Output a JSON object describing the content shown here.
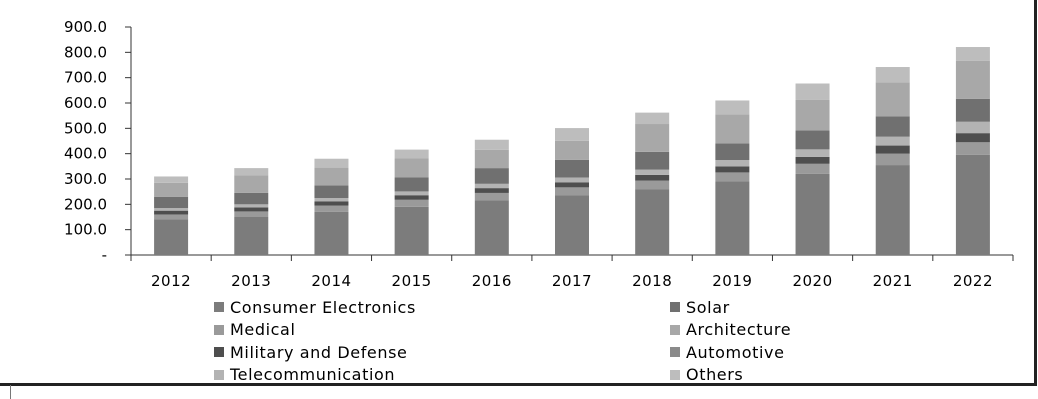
{
  "chart_data": {
    "type": "bar",
    "stacked": true,
    "categories": [
      "2012",
      "2013",
      "2014",
      "2015",
      "2016",
      "2017",
      "2018",
      "2019",
      "2020",
      "2021",
      "2022"
    ],
    "y_ticks": [
      "900.0",
      "800.0",
      "700.0",
      "600.0",
      "500.0",
      "400.0",
      "300.0",
      "200.0",
      "100.0",
      "-"
    ],
    "ylim": [
      0,
      900
    ],
    "legend_position": "bottom",
    "grid": false,
    "series": [
      {
        "name": "Consumer Electronics",
        "color": "#7c7c7c",
        "values": [
          140,
          150,
          170,
          190,
          215,
          235,
          260,
          290,
          320,
          355,
          395
        ]
      },
      {
        "name": "Medical",
        "color": "#9a9a9a",
        "values": [
          20,
          22,
          25,
          28,
          30,
          32,
          34,
          36,
          40,
          45,
          50
        ]
      },
      {
        "name": "Military and Defense",
        "color": "#4e4e4e",
        "values": [
          15,
          16,
          17,
          18,
          19,
          20,
          22,
          24,
          27,
          32,
          36
        ]
      },
      {
        "name": "Telecommunication",
        "color": "#b3b3b3",
        "values": [
          10,
          12,
          13,
          15,
          17,
          19,
          21,
          25,
          30,
          35,
          45
        ]
      },
      {
        "name": "Solar",
        "color": "#707070",
        "values": [
          45,
          45,
          50,
          55,
          62,
          70,
          70,
          65,
          75,
          80,
          90
        ]
      },
      {
        "name": "Architecture",
        "color": "#a8a8a8",
        "values": [
          55,
          70,
          70,
          75,
          72,
          75,
          110,
          115,
          120,
          135,
          150
        ]
      },
      {
        "name": "Automotive",
        "color": "#8a8a8a",
        "values": [
          0,
          0,
          0,
          0,
          0,
          0,
          0,
          0,
          0,
          0,
          0
        ]
      },
      {
        "name": "Others",
        "color": "#bdbdbd",
        "values": [
          25,
          28,
          35,
          35,
          40,
          50,
          45,
          55,
          65,
          60,
          55
        ]
      }
    ]
  }
}
